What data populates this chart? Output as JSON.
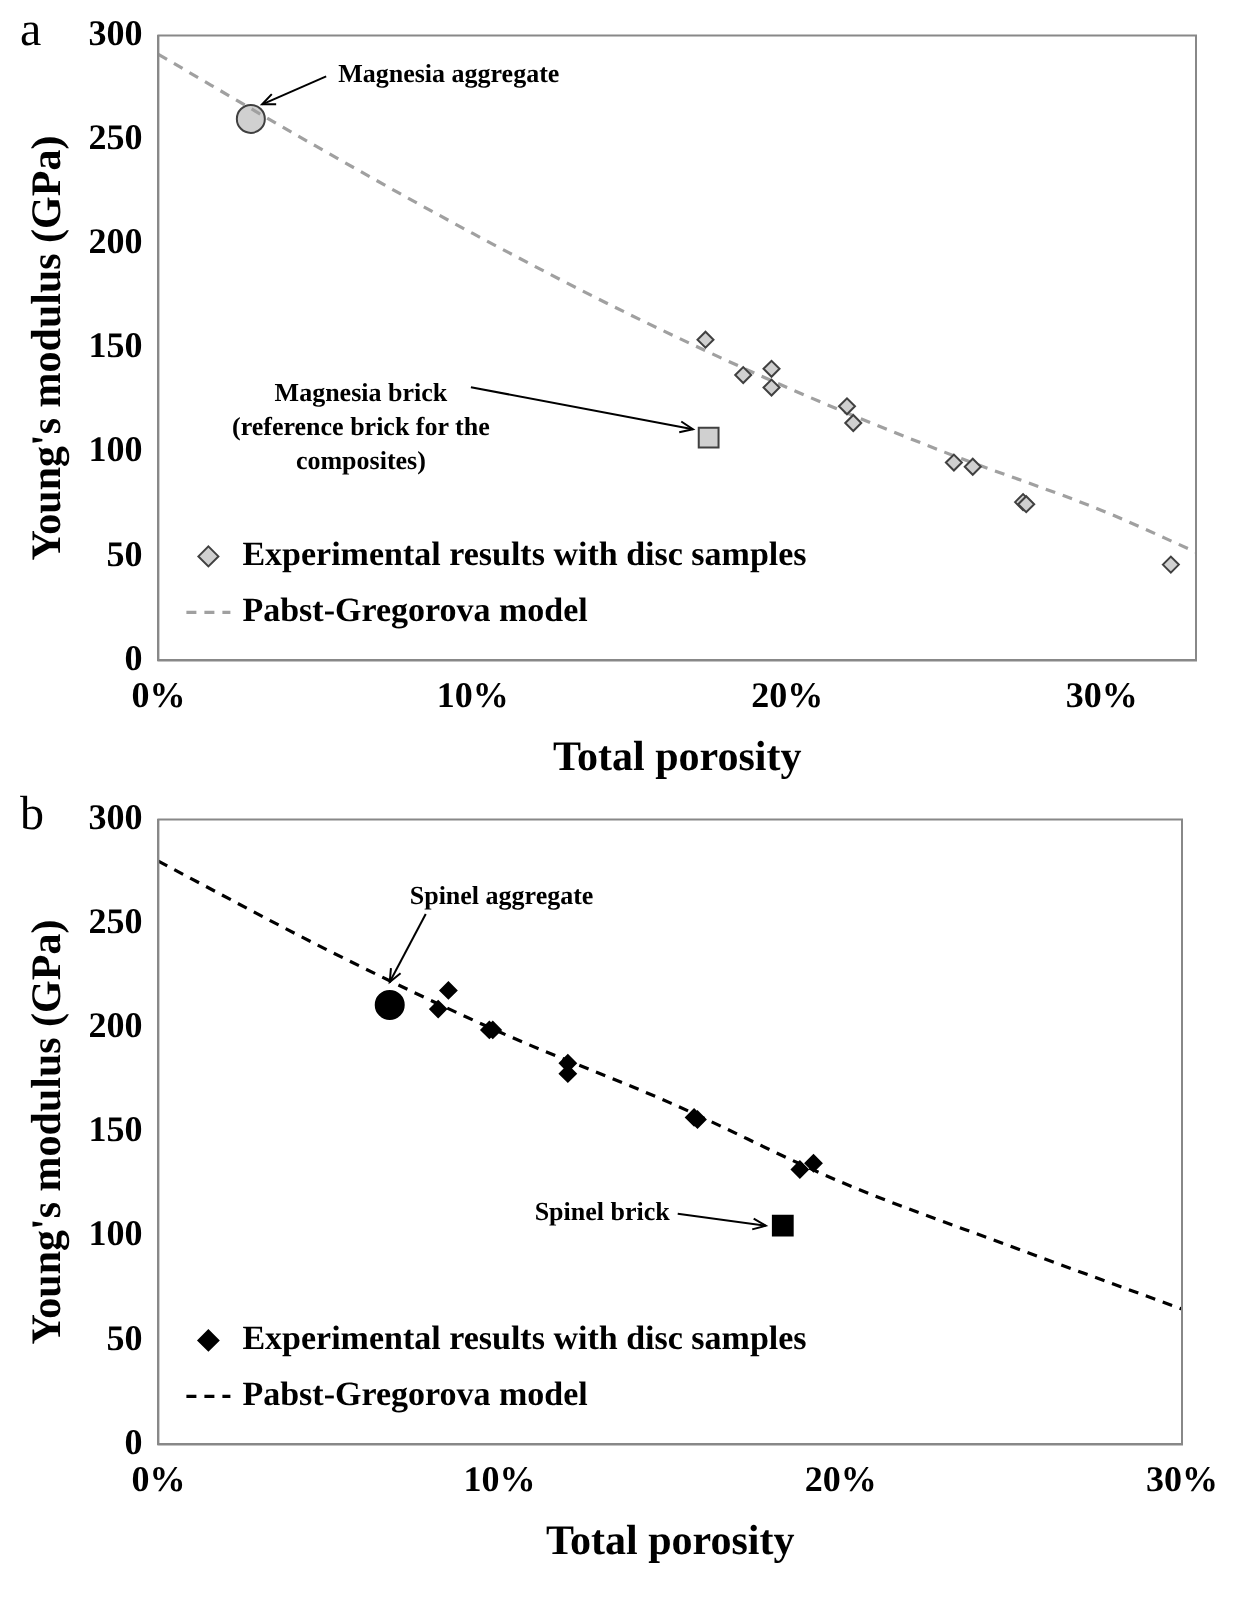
{
  "chart_data": [
    {
      "type": "scatter",
      "title": "a",
      "xlabel": "Total porosity",
      "ylabel": "Young's modulus (GPa)",
      "xlim": [
        0,
        33
      ],
      "xticks": [
        {
          "value": 0,
          "label": "0%"
        },
        {
          "value": 10,
          "label": "10%"
        },
        {
          "value": 20,
          "label": "20%"
        },
        {
          "value": 30,
          "label": "30%"
        }
      ],
      "ylim": [
        0,
        300
      ],
      "yticks": [
        0,
        50,
        100,
        150,
        200,
        250,
        300
      ],
      "grid": false,
      "legend": "bottom left",
      "series": [
        {
          "name": "Experimental results with disc samples",
          "type": "scatter",
          "marker": "diamond",
          "color": "#d0d0d0",
          "x": [
            17.4,
            18.6,
            19.5,
            19.5,
            21.9,
            22.1,
            25.3,
            25.9,
            27.5,
            27.6,
            32.2
          ],
          "values": [
            154,
            137,
            140,
            131,
            122,
            114,
            95,
            93,
            76,
            75,
            46
          ]
        },
        {
          "name": "Pabst-Gregorova model",
          "type": "line",
          "marker": "none",
          "line_style": "dashed",
          "color": "#a0a0a0",
          "x": [
            0,
            5,
            10,
            15,
            20,
            25,
            30,
            33
          ],
          "values": [
            291,
            247,
            205,
            166,
            131,
            100,
            72,
            52
          ]
        },
        {
          "type": "scatter",
          "marker": "circle",
          "color": "#d0d0d0",
          "x": [
            2.94
          ],
          "values": [
            260
          ]
        },
        {
          "type": "scatter",
          "marker": "square",
          "color": "#d0d0d0",
          "x": [
            17.5
          ],
          "values": [
            107
          ]
        }
      ],
      "annotations": [
        {
          "text": "Magnesia aggregate",
          "x": 3.3,
          "y": 267
        },
        {
          "text": "Magnesia brick\n(reference brick for the\ncomposites)",
          "x": 17,
          "y": 111
        }
      ]
    },
    {
      "type": "scatter",
      "title": "b",
      "xlabel": "Total porosity",
      "ylabel": "Young's modulus (GPa)",
      "xlim": [
        0,
        30
      ],
      "xticks": [
        {
          "value": 0,
          "label": "0%"
        },
        {
          "value": 10,
          "label": "10%"
        },
        {
          "value": 20,
          "label": "20%"
        },
        {
          "value": 30,
          "label": "30%"
        }
      ],
      "ylim": [
        0,
        300
      ],
      "yticks": [
        0,
        50,
        100,
        150,
        200,
        250,
        300
      ],
      "grid": false,
      "legend": "bottom left",
      "series": [
        {
          "name": "Experimental results with disc samples",
          "type": "scatter",
          "marker": "diamond",
          "color": "#000000",
          "x": [
            8.2,
            8.5,
            9.7,
            9.8,
            12.0,
            12.0,
            15.7,
            15.8,
            18.8,
            19.2
          ],
          "values": [
            209,
            218,
            199,
            199,
            183,
            178,
            157,
            156,
            132,
            135
          ]
        },
        {
          "name": "Pabst-Gregorova model",
          "type": "line",
          "marker": "none",
          "line_style": "dashed",
          "color": "#000000",
          "x": [
            0,
            5,
            10,
            15,
            20,
            25,
            30
          ],
          "values": [
            280,
            237,
            198,
            164,
            126,
            95,
            65
          ]
        },
        {
          "type": "scatter",
          "marker": "circle",
          "color": "#000000",
          "x": [
            6.78
          ],
          "values": [
            211
          ]
        },
        {
          "type": "scatter",
          "marker": "square",
          "color": "#000000",
          "x": [
            18.3
          ],
          "values": [
            105
          ]
        }
      ],
      "annotations": [
        {
          "text": "Spinel aggregate",
          "x": 6.78,
          "y": 222
        },
        {
          "text": "Spinel brick",
          "x": 17.8,
          "y": 105
        }
      ]
    }
  ]
}
